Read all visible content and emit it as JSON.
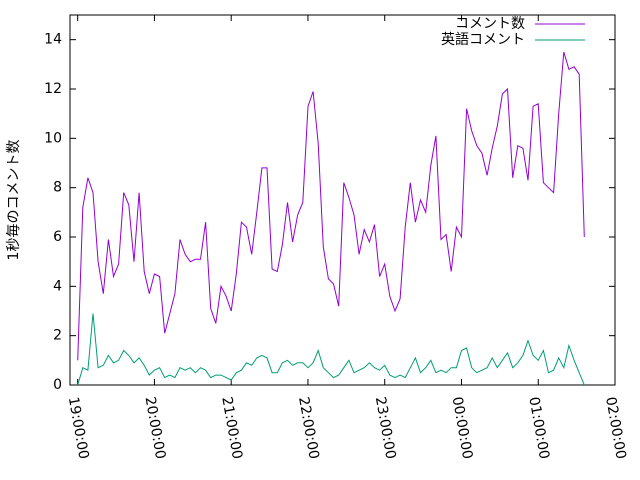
{
  "chart_data": {
    "type": "line",
    "ylabel": "1秒毎のコメント数",
    "x": [
      "19:00:00",
      "19:04:00",
      "19:08:00",
      "19:12:00",
      "19:16:00",
      "19:20:00",
      "19:24:00",
      "19:28:00",
      "19:32:00",
      "19:36:00",
      "19:40:00",
      "19:44:00",
      "19:48:00",
      "19:52:00",
      "19:56:00",
      "20:00:00",
      "20:04:00",
      "20:08:00",
      "20:12:00",
      "20:16:00",
      "20:20:00",
      "20:24:00",
      "20:28:00",
      "20:32:00",
      "20:36:00",
      "20:40:00",
      "20:44:00",
      "20:48:00",
      "20:52:00",
      "20:56:00",
      "21:00:00",
      "21:04:00",
      "21:08:00",
      "21:12:00",
      "21:16:00",
      "21:20:00",
      "21:24:00",
      "21:28:00",
      "21:32:00",
      "21:36:00",
      "21:40:00",
      "21:44:00",
      "21:48:00",
      "21:52:00",
      "21:56:00",
      "22:00:00",
      "22:04:00",
      "22:08:00",
      "22:12:00",
      "22:16:00",
      "22:20:00",
      "22:24:00",
      "22:28:00",
      "22:32:00",
      "22:36:00",
      "22:40:00",
      "22:44:00",
      "22:48:00",
      "22:52:00",
      "22:56:00",
      "23:00:00",
      "23:04:00",
      "23:08:00",
      "23:12:00",
      "23:16:00",
      "23:20:00",
      "23:24:00",
      "23:28:00",
      "23:32:00",
      "23:36:00",
      "23:40:00",
      "23:44:00",
      "23:48:00",
      "23:52:00",
      "23:56:00",
      "00:00:00",
      "00:04:00",
      "00:08:00",
      "00:12:00",
      "00:16:00",
      "00:20:00",
      "00:24:00",
      "00:28:00",
      "00:32:00",
      "00:36:00",
      "00:40:00",
      "00:44:00",
      "00:48:00",
      "00:52:00",
      "00:56:00",
      "01:00:00",
      "01:04:00",
      "01:08:00",
      "01:12:00",
      "01:16:00",
      "01:20:00",
      "01:24:00",
      "01:28:00",
      "01:32:00",
      "01:36:00"
    ],
    "series": [
      {
        "name": "コメント数",
        "color": "#9400d3",
        "values": [
          1,
          7.2,
          8.4,
          7.8,
          5.0,
          3.7,
          5.9,
          4.4,
          4.9,
          7.8,
          7.3,
          5.0,
          7.8,
          4.6,
          3.7,
          4.5,
          4.4,
          2.1,
          2.9,
          3.7,
          5.9,
          5.3,
          5.0,
          5.1,
          5.1,
          6.6,
          3.1,
          2.5,
          4.0,
          3.6,
          3.0,
          4.5,
          6.6,
          6.4,
          5.3,
          7.0,
          8.8,
          8.8,
          4.7,
          4.6,
          5.7,
          7.4,
          5.8,
          6.9,
          7.4,
          11.3,
          11.9,
          9.8,
          5.6,
          4.3,
          4.1,
          3.2,
          8.2,
          7.6,
          6.9,
          5.3,
          6.3,
          5.8,
          6.5,
          4.4,
          4.9,
          3.6,
          3.0,
          3.5,
          6.4,
          8.2,
          6.6,
          7.5,
          7.0,
          8.9,
          10.1,
          5.9,
          6.1,
          4.6,
          6.4,
          6.0,
          11.2,
          10.3,
          9.7,
          9.4,
          8.5,
          9.6,
          10.5,
          11.8,
          12.0,
          8.4,
          9.7,
          9.6,
          8.3,
          11.3,
          11.4,
          8.2,
          8.0,
          7.8,
          11.0,
          13.5,
          12.8,
          12.9,
          12.6,
          6.0
        ]
      },
      {
        "name": "英語コメント",
        "color": "#009e73",
        "values": [
          0,
          0.7,
          0.6,
          2.9,
          0.7,
          0.8,
          1.2,
          0.9,
          1.0,
          1.4,
          1.2,
          0.9,
          1.1,
          0.8,
          0.4,
          0.6,
          0.7,
          0.3,
          0.4,
          0.3,
          0.7,
          0.6,
          0.7,
          0.5,
          0.7,
          0.6,
          0.3,
          0.4,
          0.4,
          0.3,
          0.2,
          0.5,
          0.6,
          0.9,
          0.8,
          1.1,
          1.2,
          1.1,
          0.5,
          0.5,
          0.9,
          1.0,
          0.8,
          0.9,
          0.9,
          0.7,
          0.9,
          1.4,
          0.7,
          0.5,
          0.3,
          0.4,
          0.7,
          1.0,
          0.5,
          0.6,
          0.7,
          0.9,
          0.7,
          0.6,
          0.8,
          0.4,
          0.3,
          0.4,
          0.3,
          0.7,
          1.1,
          0.5,
          0.7,
          1.0,
          0.5,
          0.6,
          0.5,
          0.7,
          0.7,
          1.4,
          1.5,
          0.7,
          0.5,
          0.6,
          0.7,
          1.1,
          0.7,
          1.0,
          1.3,
          0.7,
          0.9,
          1.2,
          1.8,
          1.2,
          1.0,
          1.4,
          0.5,
          0.6,
          1.1,
          0.7,
          1.6,
          1.0,
          0.5,
          0.0
        ]
      }
    ],
    "xlim": [
      "18:54:00",
      "02:00:00"
    ],
    "xticks": [
      "19:00:00",
      "20:00:00",
      "21:00:00",
      "22:00:00",
      "23:00:00",
      "00:00:00",
      "01:00:00",
      "02:00:00"
    ],
    "ylim": [
      0,
      15
    ],
    "yticks": [
      0,
      2,
      4,
      6,
      8,
      10,
      12,
      14
    ],
    "legend": "top-right"
  }
}
